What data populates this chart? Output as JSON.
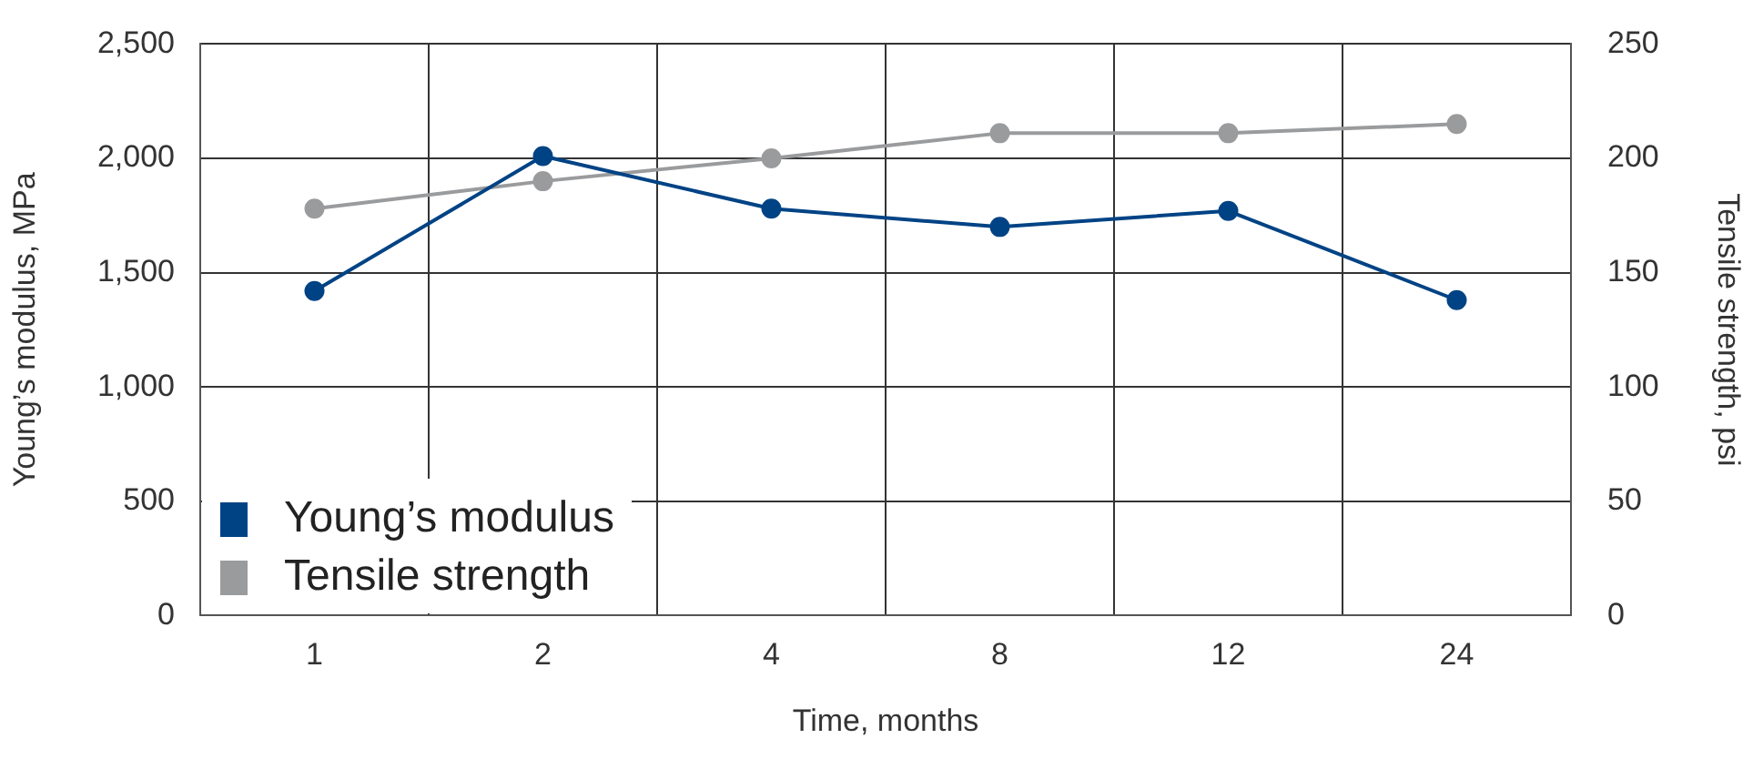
{
  "chart_data": {
    "type": "line",
    "xlabel": "Time, months",
    "ylabel": "Young’s modulus, MPa",
    "y2label": "Tensile strength, psi",
    "categories": [
      "1",
      "2",
      "4",
      "8",
      "12",
      "24"
    ],
    "series": [
      {
        "name": "Young’s modulus",
        "color": "#004385",
        "values": [
          1420,
          2010,
          1780,
          1700,
          1770,
          1380
        ]
      },
      {
        "name": "Tensile strength",
        "color": "#9a9b9d",
        "axis": "y2",
        "values": [
          178,
          190,
          200,
          211,
          211,
          215
        ]
      }
    ],
    "ylim": [
      0,
      2500
    ],
    "yticks": [
      0,
      500,
      {
        "value": 1000,
        "label": "1,000"
      },
      {
        "value": 1500,
        "label": "1,500"
      },
      {
        "value": 2000,
        "label": "2,000"
      },
      {
        "value": 2500,
        "label": "2,500"
      }
    ],
    "y2lim": [
      0,
      250
    ],
    "y2ticks": [
      0,
      50,
      100,
      150,
      200,
      250
    ],
    "grid": true,
    "legend": "bottom left",
    "marker": "circle",
    "line_style": "solid"
  }
}
